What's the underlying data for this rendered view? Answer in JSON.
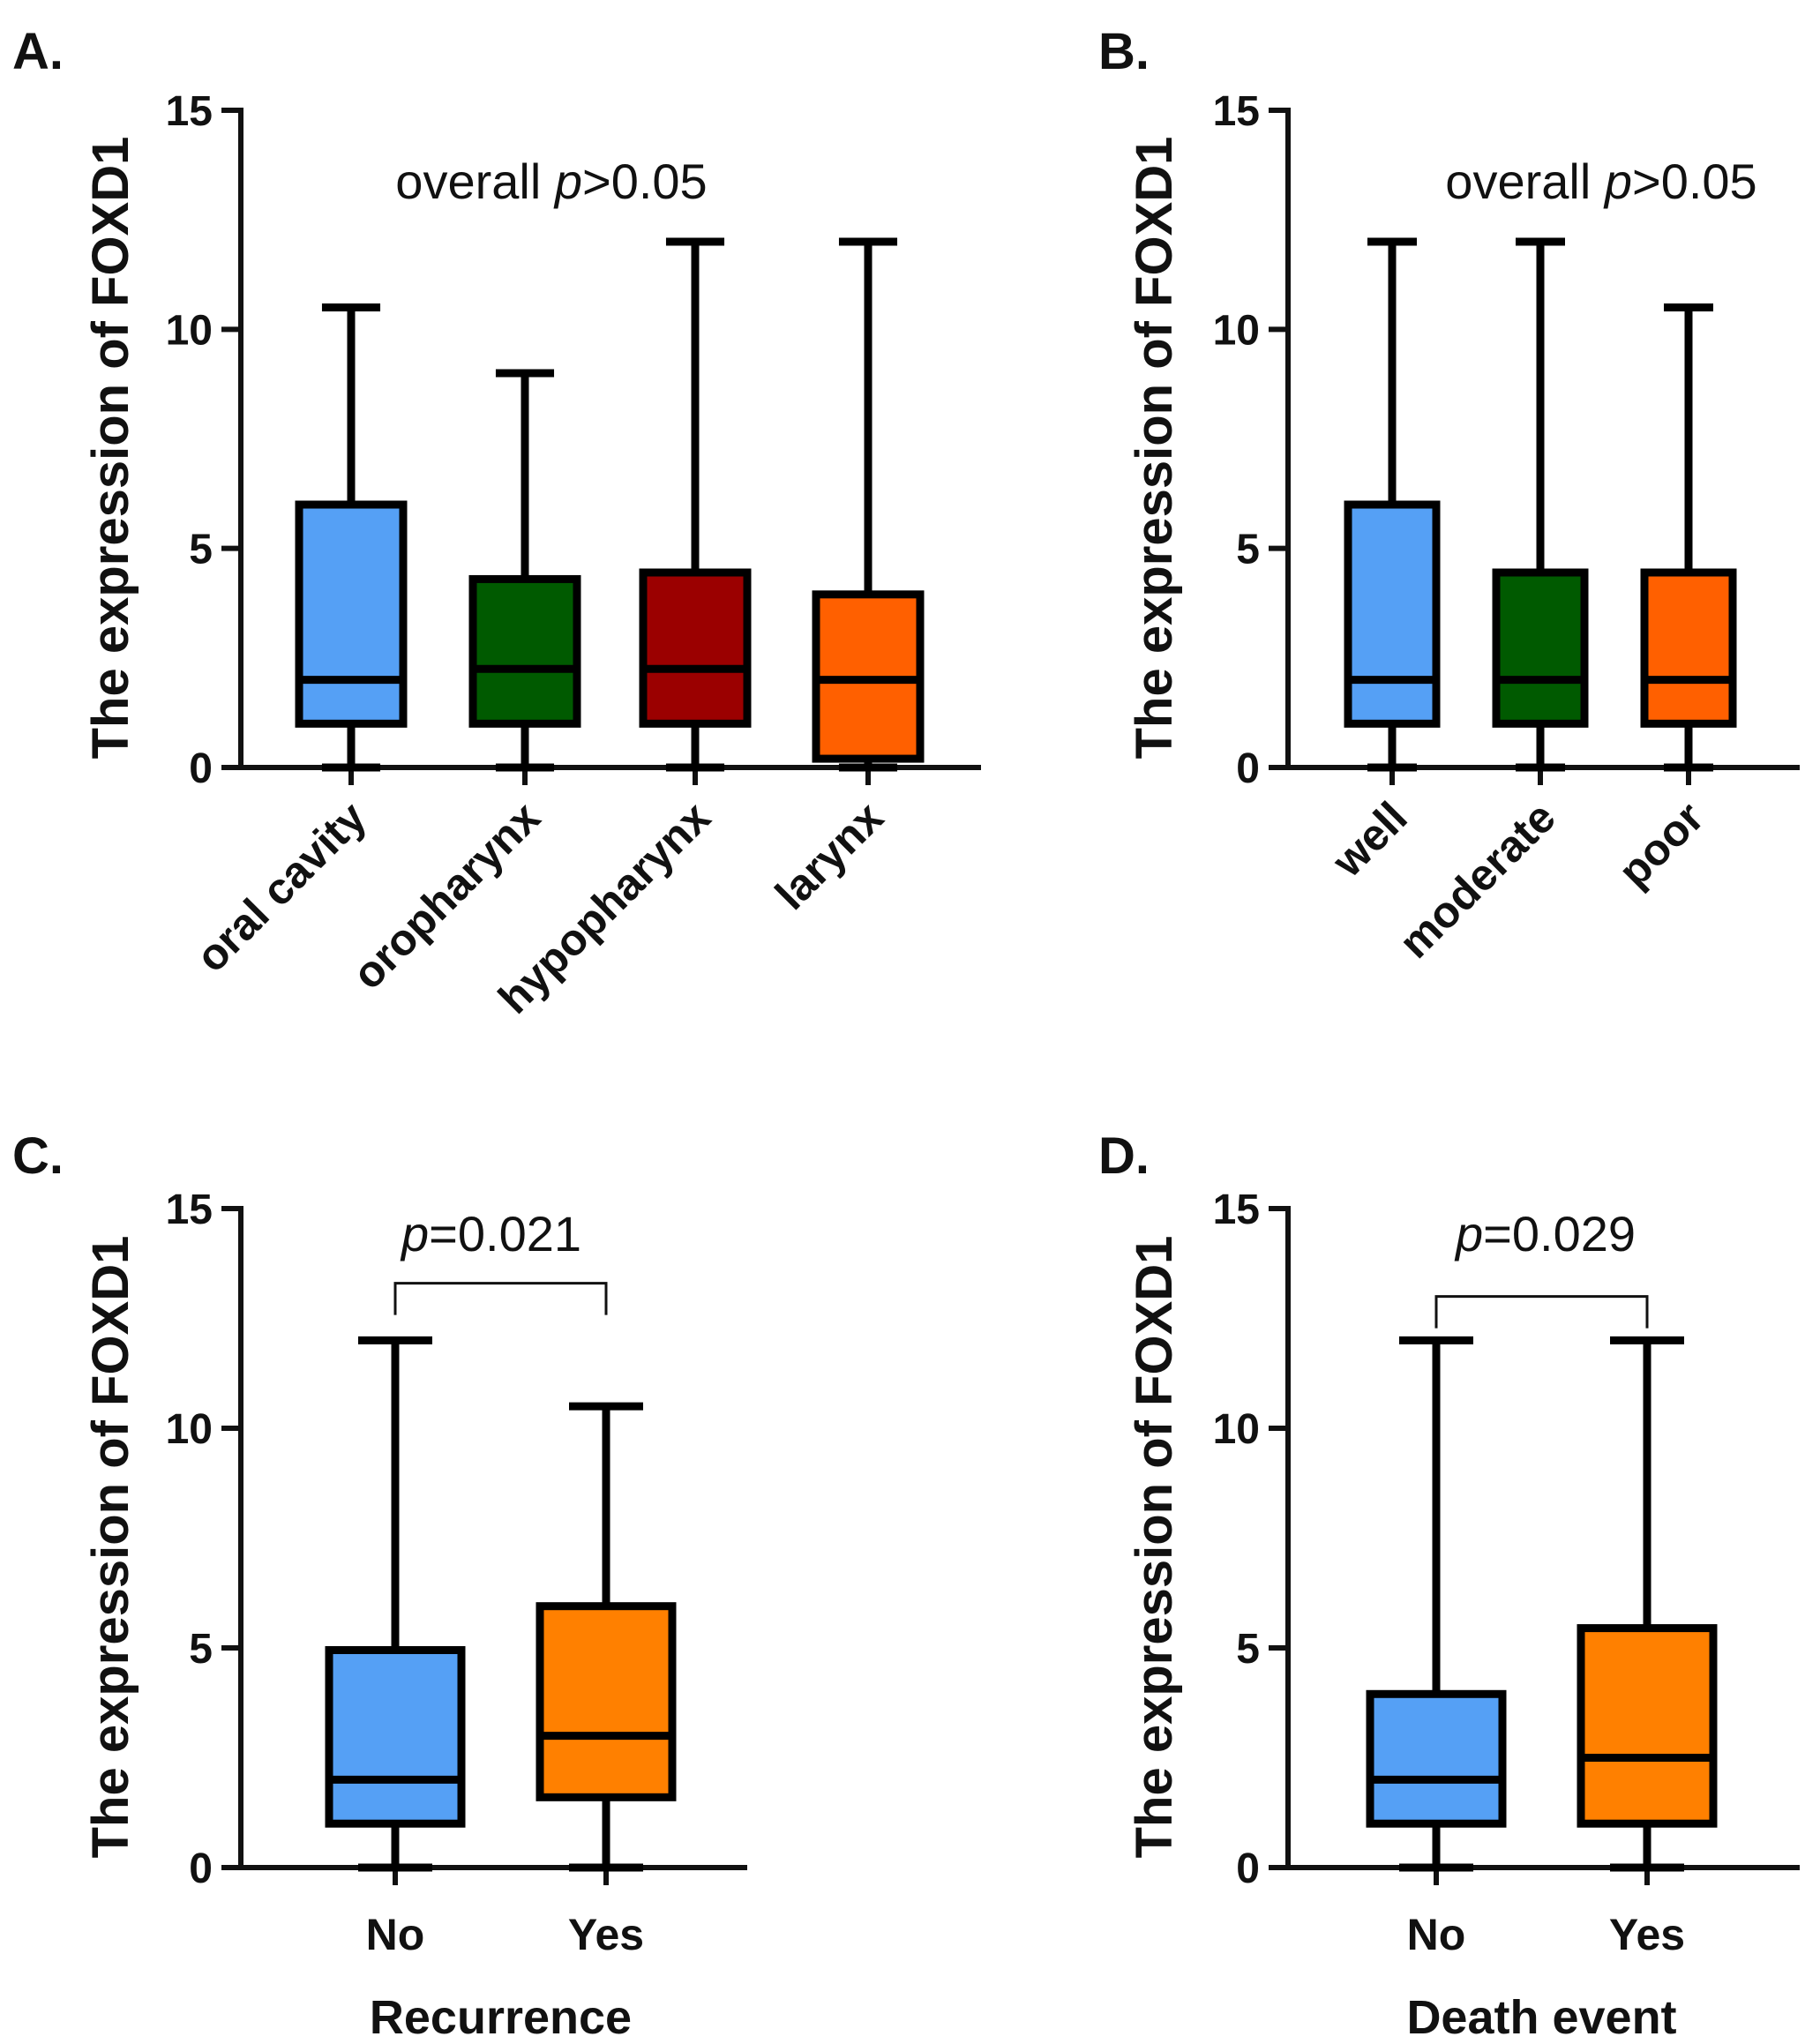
{
  "chart_data": [
    {
      "panel": "A.",
      "type": "box",
      "ylabel": "The expression of FOXD1",
      "ylim": [
        0,
        15
      ],
      "yticks": [
        "0",
        "5",
        "10",
        "15"
      ],
      "xlabel": "",
      "annotation": {
        "prefix": "overall ",
        "italic": "p",
        "suffix": ">0.05"
      },
      "categories": [
        "oral cavity",
        "oropharynx",
        "hypopharynx",
        "larynx"
      ],
      "boxes": [
        {
          "min": 0,
          "q1": 1,
          "median": 2,
          "q3": 6,
          "max": 10.5,
          "color": "#55a0f5"
        },
        {
          "min": 0,
          "q1": 1,
          "median": 2.25,
          "q3": 4.3,
          "max": 9,
          "color": "#005a00"
        },
        {
          "min": 0,
          "q1": 1,
          "median": 2.25,
          "q3": 4.45,
          "max": 12,
          "color": "#9b0000"
        },
        {
          "min": 0,
          "q1": 0.2,
          "median": 2,
          "q3": 3.95,
          "max": 12,
          "color": "#ff6000"
        }
      ]
    },
    {
      "panel": "B.",
      "type": "box",
      "ylabel": "The expression of FOXD1",
      "ylim": [
        0,
        15
      ],
      "yticks": [
        "0",
        "5",
        "10",
        "15"
      ],
      "xlabel": "",
      "annotation": {
        "prefix": "overall ",
        "italic": "p",
        "suffix": ">0.05"
      },
      "categories": [
        "well",
        "moderate",
        "poor"
      ],
      "boxes": [
        {
          "min": 0,
          "q1": 1,
          "median": 2,
          "q3": 6,
          "max": 12,
          "color": "#55a0f5"
        },
        {
          "min": 0,
          "q1": 1,
          "median": 2,
          "q3": 4.45,
          "max": 12,
          "color": "#005a00"
        },
        {
          "min": 0,
          "q1": 1,
          "median": 2,
          "q3": 4.45,
          "max": 10.5,
          "color": "#ff6000"
        }
      ]
    },
    {
      "panel": "C.",
      "type": "box",
      "ylabel": "The expression of FOXD1",
      "ylim": [
        0,
        15
      ],
      "yticks": [
        "0",
        "5",
        "10",
        "15"
      ],
      "xlabel": "Recurrence",
      "annotation": {
        "prefix": "",
        "italic": "p",
        "suffix": "=0.021"
      },
      "bracket": {
        "from": 0,
        "to": 1,
        "level": 13.3
      },
      "categories": [
        "No",
        "Yes"
      ],
      "boxes": [
        {
          "min": 0,
          "q1": 1,
          "median": 2,
          "q3": 4.95,
          "max": 12,
          "color": "#55a0f5"
        },
        {
          "min": 0,
          "q1": 1.6,
          "median": 3,
          "q3": 5.95,
          "max": 10.5,
          "color": "#ff8000"
        }
      ]
    },
    {
      "panel": "D.",
      "type": "box",
      "ylabel": "The expression of FOXD1",
      "ylim": [
        0,
        15
      ],
      "yticks": [
        "0",
        "5",
        "10",
        "15"
      ],
      "xlabel": "Death event",
      "annotation": {
        "prefix": "",
        "italic": "p",
        "suffix": "=0.029"
      },
      "bracket": {
        "from": 0,
        "to": 1,
        "level": 13.0
      },
      "categories": [
        "No",
        "Yes"
      ],
      "boxes": [
        {
          "min": 0,
          "q1": 1,
          "median": 2,
          "q3": 3.95,
          "max": 12,
          "color": "#55a0f5"
        },
        {
          "min": 0,
          "q1": 1,
          "median": 2.5,
          "q3": 5.45,
          "max": 12,
          "color": "#ff8000"
        }
      ]
    }
  ]
}
